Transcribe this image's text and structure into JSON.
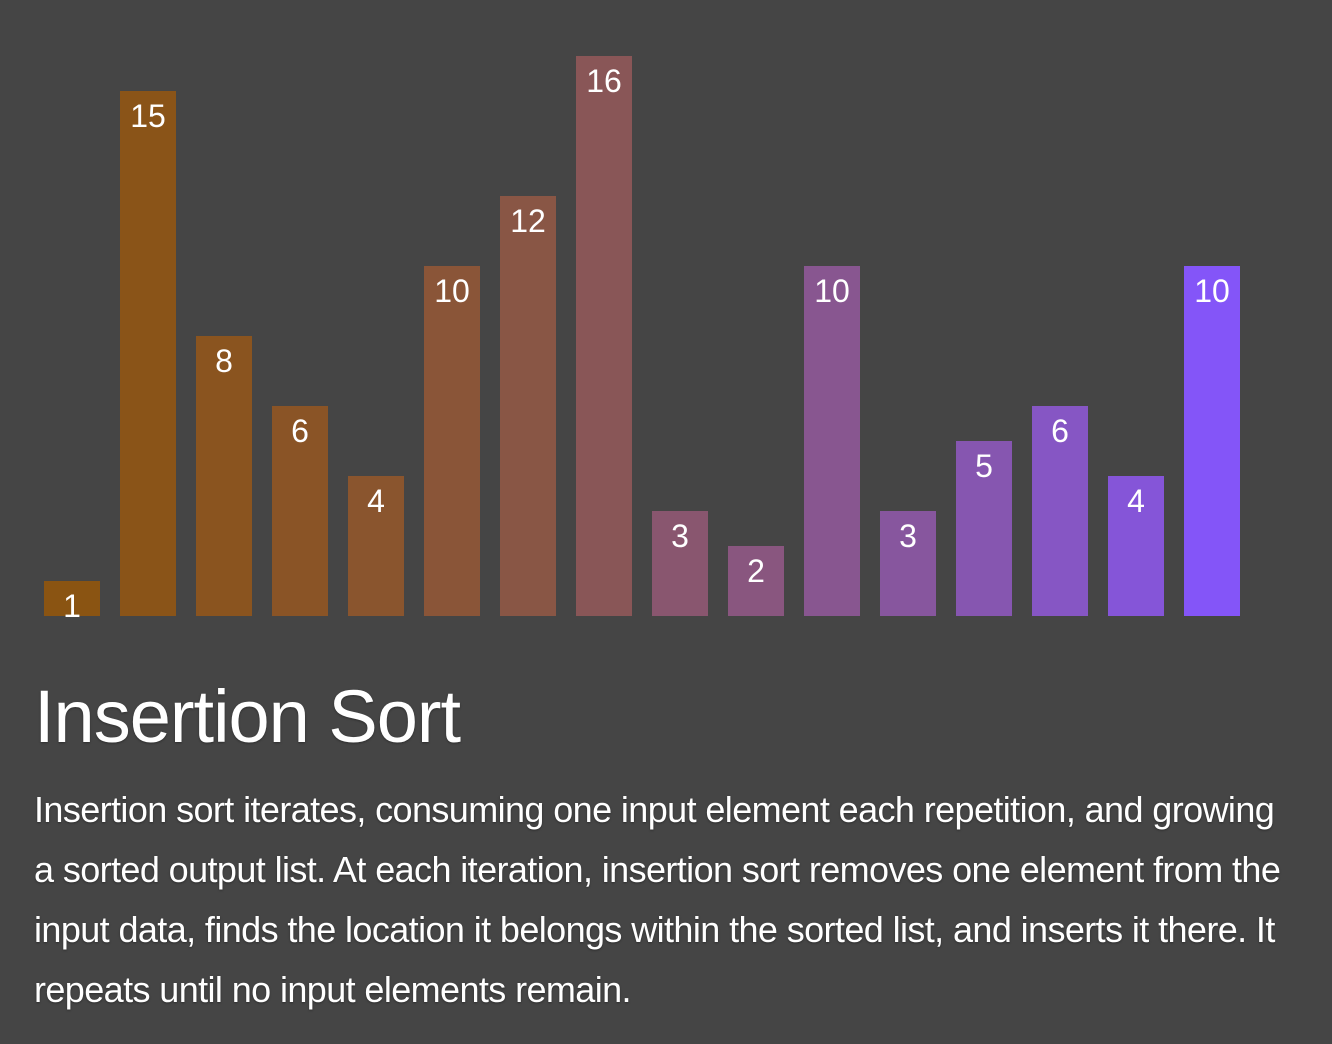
{
  "chart_data": {
    "type": "bar",
    "values": [
      1,
      15,
      8,
      6,
      4,
      10,
      12,
      16,
      3,
      2,
      10,
      3,
      5,
      6,
      4,
      10
    ],
    "colors": [
      "#8a5412",
      "#8a5418",
      "#8a541f",
      "#8a5426",
      "#8a552e",
      "#8a5538",
      "#895645",
      "#895657",
      "#89566f",
      "#89567f",
      "#885690",
      "#87569e",
      "#8656b0",
      "#8656c4",
      "#8555d8",
      "#8455f8"
    ],
    "ylim": [
      0,
      16
    ],
    "grid": false,
    "legend": "none"
  },
  "title": "Insertion Sort",
  "description": "Insertion sort iterates, consuming one input element each repetition, and growing a sorted output list. At each iteration, insertion sort removes one element from the input data, finds the location it belongs within the sorted list, and inserts it there. It repeats until no input elements remain."
}
